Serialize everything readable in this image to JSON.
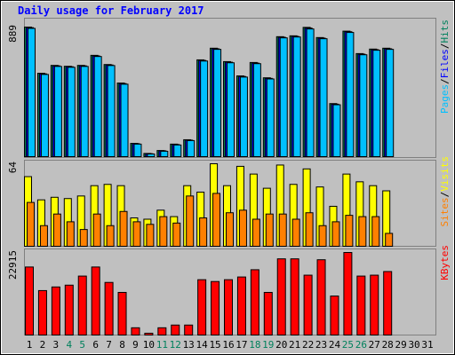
{
  "chart_data": [
    {
      "type": "bar",
      "title": "Daily usage for February 2017",
      "ylim": [
        0,
        889
      ],
      "yticks": [
        889
      ],
      "legend_separator": "/",
      "series": [
        {
          "name": "Hits",
          "color": "#00805c",
          "values": [
            889,
            572,
            626,
            620,
            626,
            695,
            632,
            505,
            91,
            22,
            42,
            86,
            116,
            664,
            744,
            652,
            554,
            646,
            541,
            823,
            829,
            887,
            817,
            364,
            861,
            707,
            738,
            744,
            null,
            null,
            null
          ]
        },
        {
          "name": "Files",
          "color": "#0000ff",
          "values": [
            885,
            568,
            623,
            617,
            623,
            691,
            629,
            501,
            89,
            20,
            40,
            83,
            113,
            660,
            740,
            648,
            550,
            642,
            537,
            819,
            825,
            882,
            813,
            360,
            857,
            703,
            734,
            740,
            null,
            null,
            null
          ]
        },
        {
          "name": "Pages",
          "color": "#00c0ff",
          "values": [
            880,
            564,
            619,
            613,
            619,
            687,
            625,
            497,
            86,
            18,
            37,
            80,
            110,
            656,
            736,
            644,
            546,
            638,
            533,
            815,
            821,
            876,
            809,
            356,
            852,
            699,
            730,
            736,
            null,
            null,
            null
          ]
        }
      ]
    },
    {
      "type": "bar",
      "ylim": [
        0,
        64
      ],
      "yticks": [
        64
      ],
      "legend_separator": "/",
      "series": [
        {
          "name": "Visits",
          "color": "#ffff00",
          "values": [
            54,
            36,
            38,
            37,
            39,
            47,
            48,
            47,
            22,
            21,
            28,
            23,
            47,
            42,
            64,
            47,
            62,
            56,
            45,
            63,
            48,
            60,
            46,
            31,
            56,
            50,
            47,
            43,
            null,
            null,
            null
          ]
        },
        {
          "name": "Sites",
          "color": "#ff8000",
          "values": [
            34,
            16,
            25,
            19,
            13,
            25,
            16,
            27,
            19,
            17,
            23,
            18,
            39,
            22,
            41,
            26,
            28,
            21,
            25,
            25,
            21,
            26,
            16,
            19,
            24,
            23,
            23,
            10,
            null,
            null,
            null
          ]
        }
      ]
    },
    {
      "type": "bar",
      "ylim": [
        0,
        22915
      ],
      "yticks": [
        22915
      ],
      "categories": [
        "1",
        "2",
        "3",
        "4",
        "5",
        "6",
        "7",
        "8",
        "9",
        "10",
        "11",
        "12",
        "13",
        "14",
        "15",
        "16",
        "17",
        "18",
        "19",
        "20",
        "21",
        "22",
        "23",
        "24",
        "25",
        "26",
        "27",
        "28",
        "29",
        "30",
        "31"
      ],
      "category_colors": [
        "#000000",
        "#000000",
        "#000000",
        "#00805c",
        "#00805c",
        "#000000",
        "#000000",
        "#000000",
        "#000000",
        "#000000",
        "#00805c",
        "#00805c",
        "#000000",
        "#000000",
        "#000000",
        "#000000",
        "#000000",
        "#00805c",
        "#00805c",
        "#000000",
        "#000000",
        "#000000",
        "#000000",
        "#000000",
        "#00805c",
        "#00805c",
        "#000000",
        "#000000",
        "#000000",
        "#000000",
        "#000000"
      ],
      "series": [
        {
          "name": "KBytes",
          "color": "#ff0000",
          "values": [
            18886,
            12339,
            13346,
            13850,
            16368,
            18886,
            14605,
            11835,
            2014,
            504,
            2014,
            2770,
            2770,
            15361,
            14857,
            15361,
            16116,
            18131,
            11835,
            21152,
            21152,
            16620,
            20901,
            10828,
            22915,
            16368,
            16620,
            17627,
            null,
            null,
            null
          ]
        }
      ]
    }
  ]
}
